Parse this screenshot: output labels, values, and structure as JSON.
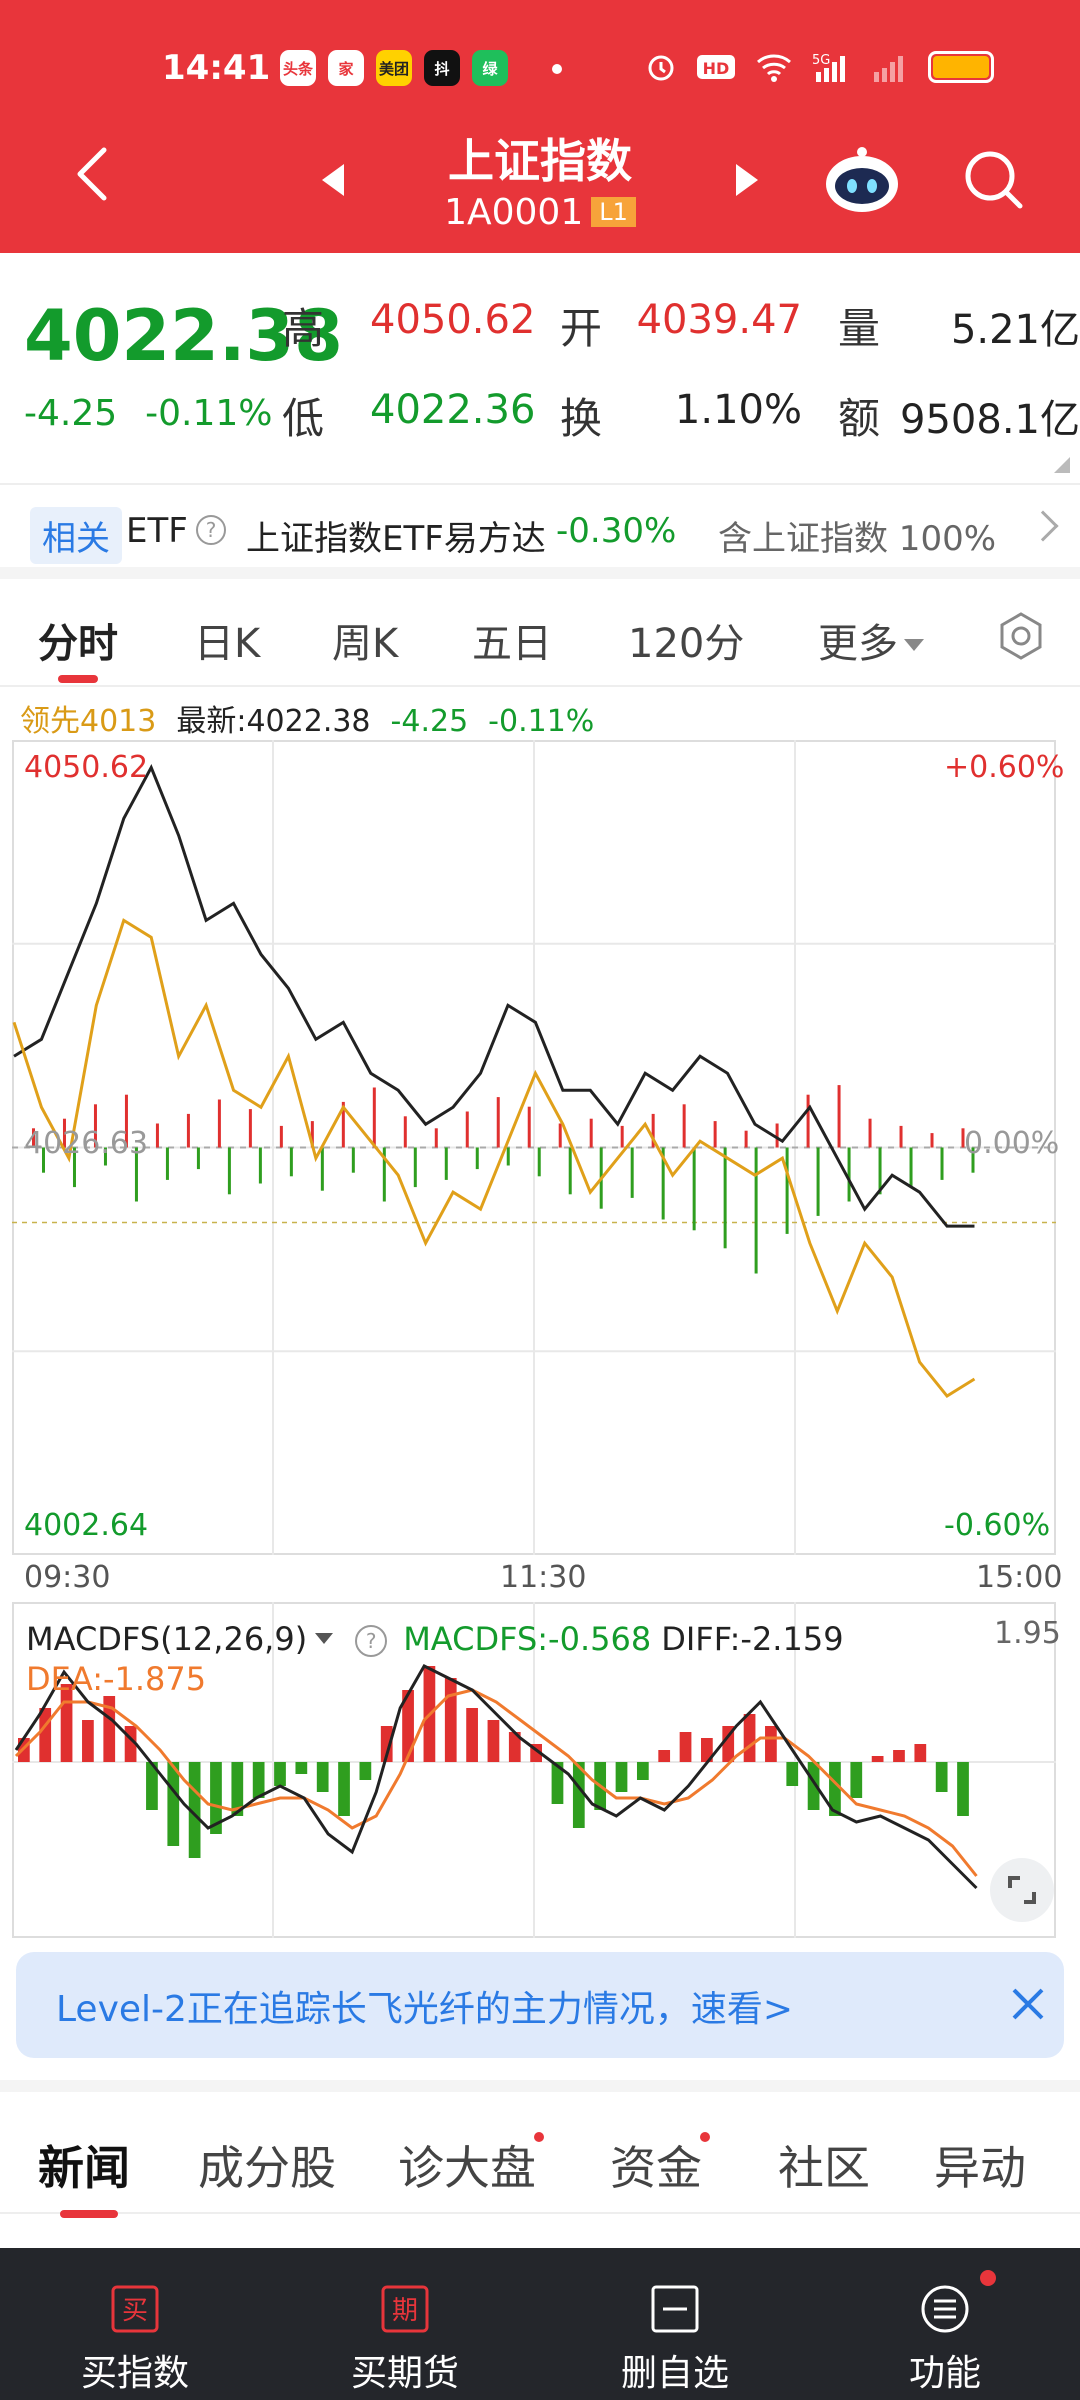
{
  "status_bar": {
    "time": "14:41",
    "apps": [
      "头条",
      "家",
      "美团",
      "抖",
      "绿"
    ],
    "icons": [
      "alarm-icon",
      "hd-icon",
      "wifi-icon",
      "5g-signal-icon",
      "signal-icon",
      "battery-icon"
    ]
  },
  "header": {
    "title": "上证指数",
    "code": "1A0001",
    "level_badge": "L1",
    "colors": {
      "bg": "#e8353b"
    }
  },
  "quote": {
    "price": "4022.38",
    "change": "-4.25",
    "change_pct": "-0.11%",
    "labels": {
      "high": "高",
      "low": "低",
      "open": "开",
      "turnover": "换",
      "volume": "量",
      "amount": "额"
    },
    "high": "4050.62",
    "low": "4022.36",
    "open": "4039.47",
    "turnover": "1.10%",
    "volume": "5.21亿",
    "amount": "9508.1亿"
  },
  "etf": {
    "tag": "相关",
    "label": "ETF",
    "help": "?",
    "name": "上证指数ETF易方达",
    "pct": "-0.30%",
    "contains": "含上证指数  100%"
  },
  "tabs": {
    "items": [
      "分时",
      "日K",
      "周K",
      "五日",
      "120分",
      "更多"
    ]
  },
  "infoline": {
    "lead": "领先4013",
    "latest": "最新:4022.38",
    "change": "-4.25",
    "pct": "-0.11%"
  },
  "chart_data": {
    "type": "line",
    "title": "",
    "y_max_label": "4050.62",
    "y_min_label": "4002.64",
    "y_mid_label": "4026.63",
    "pct_max_label": "+0.60%",
    "pct_mid_label": "0.00%",
    "pct_min_label": "-0.60%",
    "x_labels": [
      "09:30",
      "11:30",
      "15:00"
    ],
    "ylim": [
      4002.64,
      4050.62
    ],
    "prev_close": 4026.63,
    "series": [
      {
        "values": [
          4032,
          4033,
          4037,
          4041,
          4046,
          4049,
          4045,
          4040,
          4041,
          4038,
          4036,
          4033,
          4034,
          4031,
          4030,
          4028,
          4029,
          4031,
          4035,
          4034,
          4030,
          4030,
          4028,
          4031,
          4030,
          4032,
          4031,
          4028,
          4027,
          4029,
          4026,
          4023,
          4025,
          4024,
          4022,
          4022
        ]
      },
      {
        "values": [
          4034,
          4029,
          4026,
          4035,
          4040,
          4039,
          4032,
          4035,
          4030,
          4029,
          4032,
          4026,
          4029,
          4027,
          4025,
          4021,
          4024,
          4023,
          4027,
          4031,
          4028,
          4024,
          4026,
          4028,
          4025,
          4027,
          4026,
          4025,
          4026,
          4021,
          4017,
          4021,
          4019,
          4014,
          4012,
          4013
        ]
      }
    ],
    "volume_bars_up": [
      8,
      12,
      18,
      22,
      10,
      14,
      20,
      16,
      9,
      11,
      19,
      25,
      13,
      8,
      15,
      21,
      17,
      10,
      12,
      9,
      14,
      18,
      11,
      7,
      10,
      22,
      26,
      12,
      9,
      6,
      8
    ],
    "volume_bars_down": [
      14,
      22,
      10,
      30,
      18,
      12,
      26,
      20,
      16,
      24,
      14,
      30,
      22,
      18,
      12,
      10,
      16,
      26,
      34,
      28,
      40,
      46,
      56,
      70,
      48,
      38,
      30,
      26,
      22,
      18,
      14
    ]
  },
  "macd": {
    "name": "MACDFS(12,26,9)",
    "help": "?",
    "macdfs": "MACDFS:-0.568",
    "diff": "DIFF:-2.159",
    "dea": "DEA:-1.875",
    "max": "1.95",
    "hist": [
      0.4,
      0.9,
      1.3,
      0.7,
      1.1,
      0.6,
      -0.8,
      -1.4,
      -1.6,
      -1.2,
      -0.9,
      -0.6,
      -0.4,
      -0.2,
      -0.5,
      -0.9,
      -0.3,
      0.6,
      1.2,
      1.6,
      1.4,
      0.9,
      0.7,
      0.5,
      0.3,
      -0.7,
      -1.1,
      -0.8,
      -0.5,
      -0.3,
      0.2,
      0.5,
      0.4,
      0.6,
      0.8,
      0.6,
      -0.4,
      -0.8,
      -0.9,
      -0.6,
      0.1,
      0.2,
      0.3,
      -0.5,
      -0.9
    ],
    "diff_line": [
      0.2,
      0.8,
      1.5,
      1.0,
      0.7,
      0.3,
      -0.2,
      -0.7,
      -1.1,
      -0.9,
      -0.6,
      -0.4,
      -0.6,
      -1.2,
      -1.5,
      -0.5,
      0.9,
      1.6,
      1.4,
      1.2,
      0.8,
      0.4,
      0.1,
      -0.2,
      -0.7,
      -0.9,
      -0.6,
      -0.8,
      -0.4,
      0.1,
      0.6,
      1.0,
      0.4,
      -0.2,
      -0.8,
      -1.0,
      -0.9,
      -1.1,
      -1.3,
      -1.7,
      -2.1
    ],
    "dea_line": [
      0.1,
      0.5,
      1.0,
      1.0,
      0.9,
      0.6,
      0.2,
      -0.3,
      -0.7,
      -0.8,
      -0.7,
      -0.6,
      -0.6,
      -0.8,
      -1.1,
      -0.9,
      -0.2,
      0.7,
      1.1,
      1.2,
      1.0,
      0.7,
      0.4,
      0.1,
      -0.3,
      -0.6,
      -0.6,
      -0.7,
      -0.6,
      -0.3,
      0.1,
      0.4,
      0.4,
      0.1,
      -0.3,
      -0.7,
      -0.8,
      -0.9,
      -1.1,
      -1.4,
      -1.9
    ]
  },
  "banner": {
    "text": "Level-2正在追踪长飞光纤的主力情况，速看>"
  },
  "news_tabs": {
    "items": [
      "新闻",
      "成分股",
      "诊大盘",
      "资金",
      "社区",
      "异动"
    ]
  },
  "bottom_bar": {
    "items": [
      {
        "icon_text": "买",
        "label": "买指数"
      },
      {
        "icon_text": "期",
        "label": "买期货"
      },
      {
        "icon_text": "",
        "label": "删自选"
      },
      {
        "icon_text": "",
        "label": "功能"
      }
    ]
  }
}
